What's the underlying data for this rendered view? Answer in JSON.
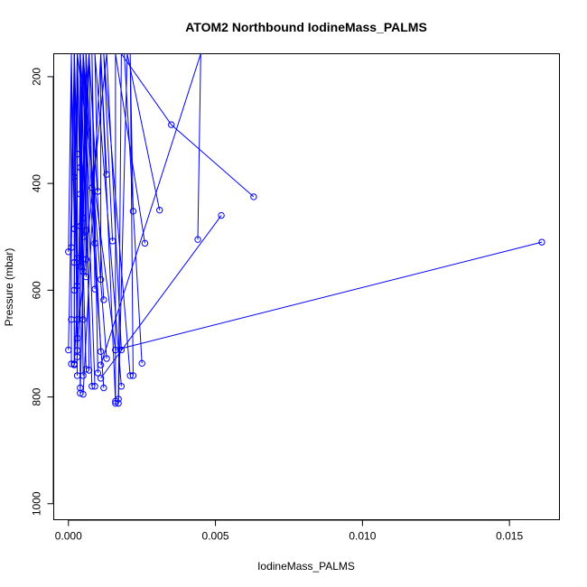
{
  "chart_data": {
    "type": "line",
    "title": "ATOM2 Northbound IodineMass_PALMS",
    "xlabel": "IodineMass_PALMS",
    "ylabel": "Pressure (mbar)",
    "xlim": [
      -0.0005,
      0.0167
    ],
    "ylim": [
      1030,
      157
    ],
    "y_reversed": true,
    "x_ticks": [
      {
        "value": 0.0,
        "label": "0.000"
      },
      {
        "value": 0.005,
        "label": "0.005"
      },
      {
        "value": 0.01,
        "label": "0.010"
      },
      {
        "value": 0.015,
        "label": "0.015"
      }
    ],
    "y_ticks": [
      {
        "value": 200,
        "label": "200"
      },
      {
        "value": 400,
        "label": "400"
      },
      {
        "value": 600,
        "label": "600"
      },
      {
        "value": 800,
        "label": "800"
      },
      {
        "value": 1000,
        "label": "1000"
      }
    ],
    "grid": false,
    "legend": "none",
    "series_color": "#0000ff",
    "marker": "open-circle",
    "series": [
      {
        "x": [
          0.0161,
          0.0016
        ],
        "y": [
          510,
          712
        ]
      },
      {
        "x": [
          0.0063,
          0.0035,
          0.0018,
          0.0017
        ],
        "y": [
          425,
          290,
          157,
          804
        ]
      },
      {
        "x": [
          0.0052,
          0.0011
        ],
        "y": [
          460,
          765
        ]
      },
      {
        "x": [
          0.0044,
          0.0045,
          0.0011
        ],
        "y": [
          505,
          157,
          740
        ]
      },
      {
        "x": [
          0.0031,
          0.002,
          0.0017
        ],
        "y": [
          450,
          157,
          812
        ]
      },
      {
        "x": [
          0.0026,
          0.0016,
          0.0016
        ],
        "y": [
          512,
          157,
          812
        ]
      },
      {
        "x": [
          0.0025,
          0.0019
        ],
        "y": [
          737,
          157
        ]
      },
      {
        "x": [
          0.0022,
          0.0021,
          0.0022
        ],
        "y": [
          452,
          157,
          760
        ]
      },
      {
        "x": [
          0.0015,
          0.0012,
          0.0021
        ],
        "y": [
          508,
          157,
          760
        ]
      },
      {
        "x": [
          0.0013,
          0.0011,
          0.0016
        ],
        "y": [
          383,
          157,
          808
        ]
      },
      {
        "x": [
          0.0018,
          0.0013,
          0.0003
        ],
        "y": [
          712,
          157,
          690
        ]
      },
      {
        "x": [
          0.001,
          0.0009,
          0.0018
        ],
        "y": [
          415,
          157,
          780
        ]
      },
      {
        "x": [
          0.0009,
          0.0005,
          0.0009
        ],
        "y": [
          512,
          157,
          780
        ]
      },
      {
        "x": [
          0.0011,
          0.0011,
          0.0005
        ],
        "y": [
          580,
          157,
          795
        ]
      },
      {
        "x": [
          0.0012,
          0.0007,
          0.0002
        ],
        "y": [
          618,
          157,
          740
        ]
      },
      {
        "x": [
          0.0008,
          0.0007,
          0.0004
        ],
        "y": [
          408,
          157,
          793
        ]
      },
      {
        "x": [
          0.0006,
          0.0004,
          0.0008
        ],
        "y": [
          488,
          157,
          780
        ]
      },
      {
        "x": [
          0.0005,
          0.0004,
          0.0004
        ],
        "y": [
          465,
          157,
          783
        ]
      },
      {
        "x": [
          0.0004,
          0.0003,
          0.0006
        ],
        "y": [
          420,
          157,
          748
        ]
      },
      {
        "x": [
          0.0003,
          0.0002,
          0.0003
        ],
        "y": [
          345,
          157,
          760
        ]
      },
      {
        "x": [
          0.0002,
          0.0002,
          0.0002
        ],
        "y": [
          388,
          157,
          738
        ]
      },
      {
        "x": [
          0.0002,
          0.0001,
          0.0001
        ],
        "y": [
          485,
          157,
          738
        ]
      },
      {
        "x": [
          0.0001,
          0.0002,
          0.0
        ],
        "y": [
          520,
          157,
          712
        ]
      },
      {
        "x": [
          0.0,
          0.0001,
          0.0001
        ],
        "y": [
          528,
          157,
          655
        ]
      },
      {
        "x": [
          0.0003,
          0.0003,
          0.0005
        ],
        "y": [
          540,
          157,
          655
        ]
      },
      {
        "x": [
          0.0004,
          0.0005,
          0.0003
        ],
        "y": [
          555,
          157,
          655
        ]
      },
      {
        "x": [
          0.0005,
          0.0004,
          0.0005
        ],
        "y": [
          565,
          157,
          760
        ]
      },
      {
        "x": [
          0.0002,
          0.0003,
          0.0003
        ],
        "y": [
          600,
          157,
          713
        ]
      },
      {
        "x": [
          0.0003,
          0.0002,
          0.0002
        ],
        "y": [
          592,
          157,
          738
        ]
      },
      {
        "x": [
          0.0006,
          0.0006,
          0.0007
        ],
        "y": [
          575,
          157,
          750
        ]
      },
      {
        "x": [
          0.0009,
          0.0008,
          0.001
        ],
        "y": [
          598,
          157,
          755
        ]
      },
      {
        "x": [
          0.0006,
          0.0005,
          0.0013
        ],
        "y": [
          542,
          157,
          728
        ]
      },
      {
        "x": [
          0.0004,
          0.0007,
          0.0003
        ],
        "y": [
          480,
          157,
          725
        ]
      },
      {
        "x": [
          0.0005,
          0.0006,
          0.0011
        ],
        "y": [
          500,
          157,
          715
        ]
      },
      {
        "x": [
          0.0002,
          0.0003,
          0.0016
        ],
        "y": [
          548,
          157,
          712
        ]
      },
      {
        "x": [
          0.0004,
          0.0004,
          0.0012
        ],
        "y": [
          370,
          157,
          783
        ]
      }
    ]
  }
}
